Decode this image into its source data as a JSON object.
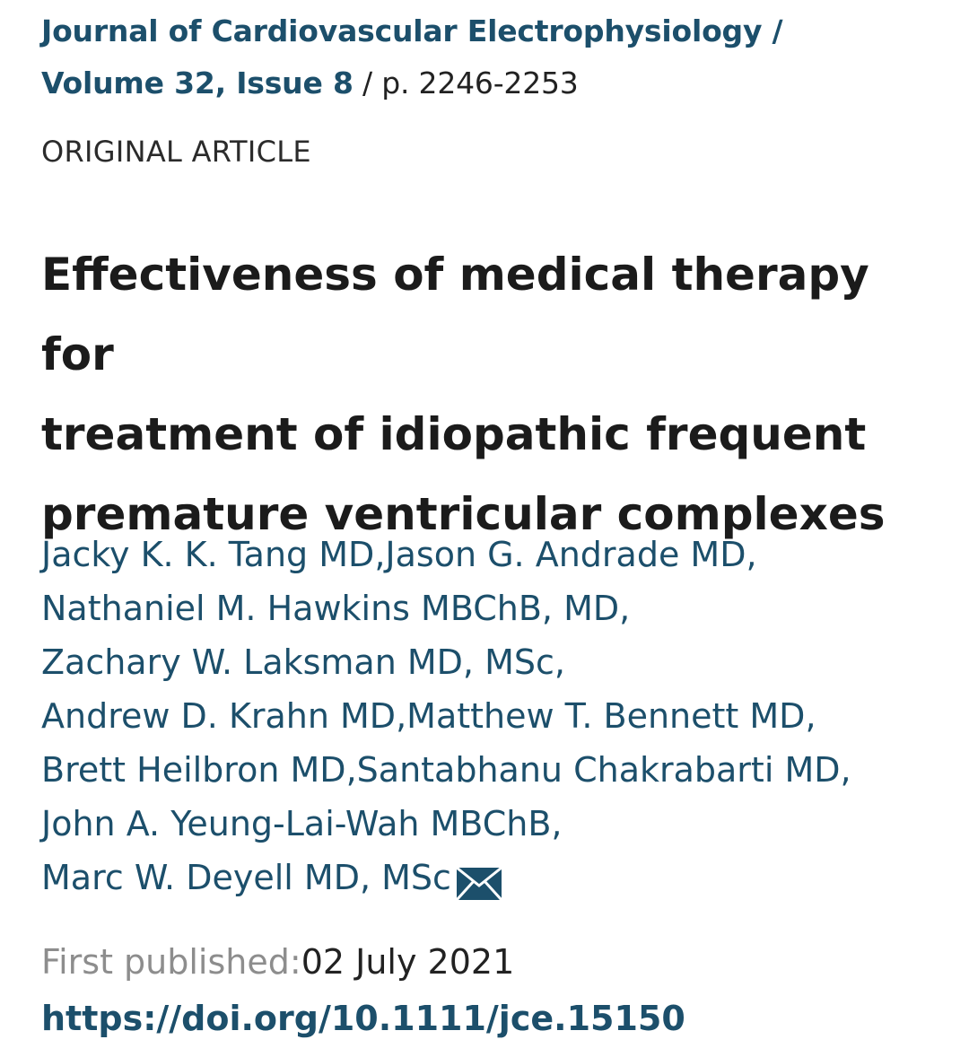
{
  "journal": {
    "name": "Journal of Cardiovascular Electrophysiology /",
    "volume_issue": "Volume 32, Issue 8",
    "pages": " / p. 2246-2253"
  },
  "article_type": "ORIGINAL ARTICLE",
  "title_lines": [
    "Effectiveness of medical therapy for",
    "treatment of idiopathic frequent",
    "premature ventricular complexes"
  ],
  "authors": [
    "Jacky K. K. Tang MD",
    "Jason G. Andrade MD",
    "Nathaniel M. Hawkins MBChB, MD",
    "Zachary W. Laksman MD, MSc",
    "Andrew D. Krahn MD",
    "Matthew T. Bennett MD",
    "Brett Heilbron MD",
    "Santabhanu Chakrabarti MD",
    "John A. Yeung-Lai-Wah MBChB",
    "Marc W. Deyell MD, MSc"
  ],
  "separators": [
    ",",
    ", ",
    ","
  ],
  "published": {
    "label": "First published:",
    "date": "02 July 2021"
  },
  "doi": "https://doi.org/10.1111/jce.15150",
  "icons": {
    "contact": "envelope-icon"
  },
  "colors": {
    "link": "#1c4f6b",
    "text": "#1b1b1b",
    "muted": "#8d8d8d"
  }
}
